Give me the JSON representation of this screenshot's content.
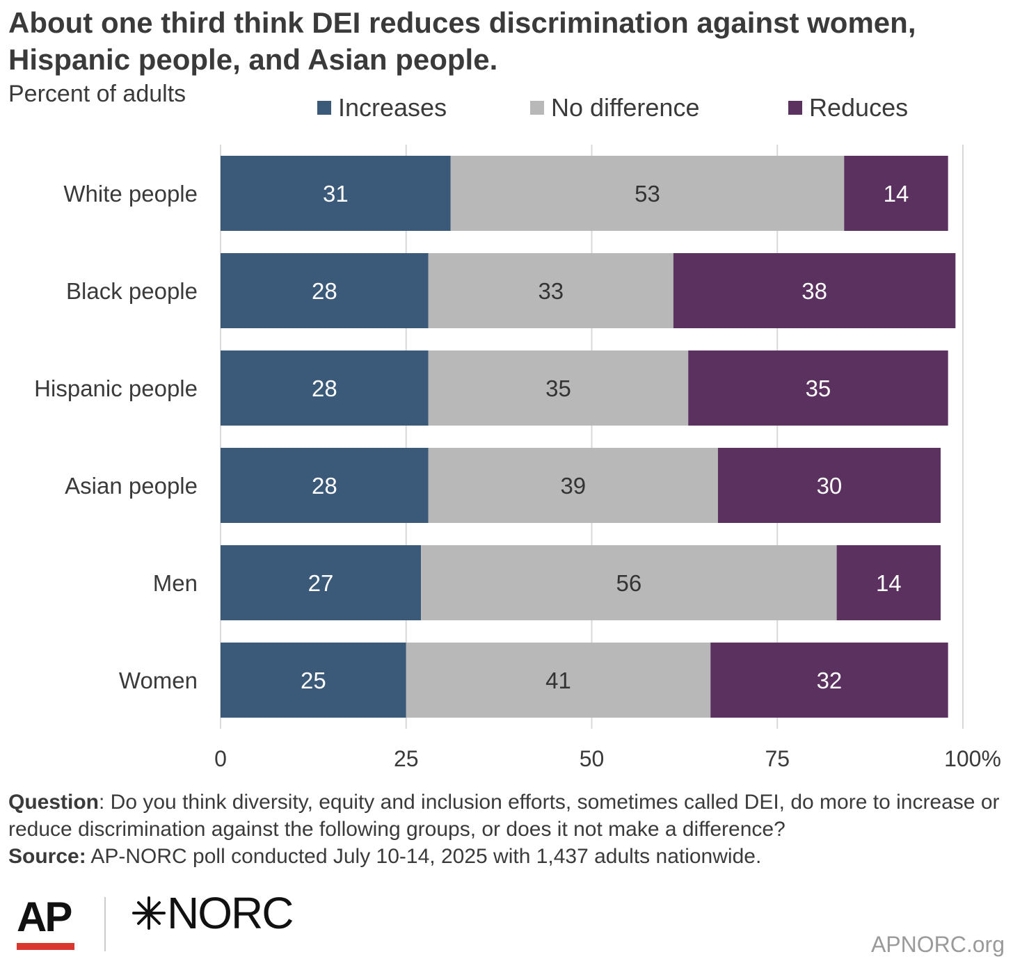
{
  "header": {
    "title": "About one third think DEI reduces discrimination against women, Hispanic people, and Asian people.",
    "subtitle": "Percent of adults"
  },
  "legend": [
    {
      "label": "Increases",
      "color": "#3b5a7a"
    },
    {
      "label": "No difference",
      "color": "#b8b8b8"
    },
    {
      "label": "Reduces",
      "color": "#5a315f"
    }
  ],
  "chart_data": {
    "type": "bar",
    "orientation": "horizontal",
    "stacked": true,
    "categories": [
      "White people",
      "Black people",
      "Hispanic people",
      "Asian people",
      "Men",
      "Women"
    ],
    "series": [
      {
        "name": "Increases",
        "color": "#3b5a7a",
        "values": [
          31,
          28,
          28,
          28,
          27,
          25
        ]
      },
      {
        "name": "No difference",
        "color": "#b8b8b8",
        "values": [
          53,
          33,
          35,
          39,
          56,
          41
        ]
      },
      {
        "name": "Reduces",
        "color": "#5a315f",
        "values": [
          14,
          38,
          35,
          30,
          14,
          32
        ]
      }
    ],
    "xlim": [
      0,
      100
    ],
    "xticks": [
      "0",
      "25",
      "50",
      "75",
      "100%"
    ],
    "grid": true,
    "legend_position": "top"
  },
  "footer": {
    "question_label": "Question",
    "question_text": ": Do you think diversity, equity and inclusion efforts, sometimes called DEI, do more to increase or reduce discrimination against the following groups, or does it not make a difference?",
    "source_label": "Source:",
    "source_text": " AP-NORC poll conducted July 10-14, 2025 with 1,437 adults nationwide."
  },
  "logos": {
    "ap": "AP",
    "norc": "NORC",
    "site": "APNORC.org"
  }
}
